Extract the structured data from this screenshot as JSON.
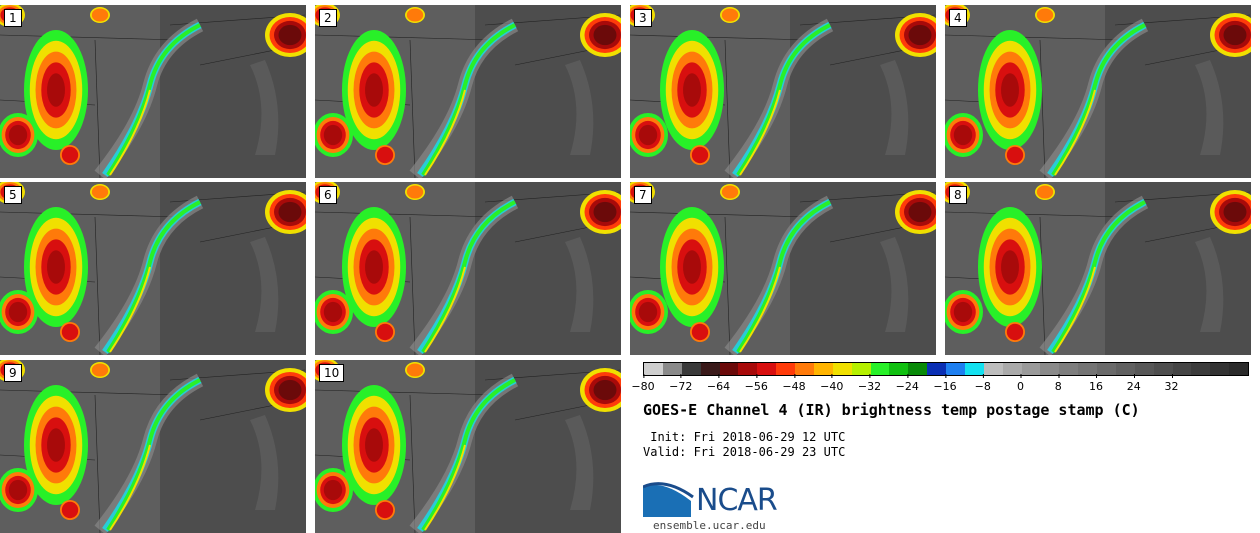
{
  "panels": [
    {
      "label": "1"
    },
    {
      "label": "2"
    },
    {
      "label": "3"
    },
    {
      "label": "4"
    },
    {
      "label": "5"
    },
    {
      "label": "6"
    },
    {
      "label": "7"
    },
    {
      "label": "8"
    },
    {
      "label": "9"
    },
    {
      "label": "10"
    }
  ],
  "colorbar": {
    "colors": [
      "#cfcfcf",
      "#8a8a8a",
      "#3a3a3a",
      "#3a1a1a",
      "#6b0a0a",
      "#a80a0a",
      "#d80f0f",
      "#ff3b0a",
      "#ff7a0a",
      "#ffb400",
      "#f0e000",
      "#b5f000",
      "#28f028",
      "#10c010",
      "#088a08",
      "#0a2fb4",
      "#1e7ff0",
      "#14e1f0",
      "#bdbdbd",
      "#aaaaaa",
      "#9a9a9a",
      "#8a8a8a",
      "#7e7e7e",
      "#747474",
      "#6a6a6a",
      "#606060",
      "#575757",
      "#4e4e4e",
      "#454545",
      "#3c3c3c",
      "#333333",
      "#2b2b2b"
    ],
    "ticks": [
      "−80",
      "−72",
      "−64",
      "−56",
      "−48",
      "−40",
      "−32",
      "−24",
      "−16",
      "−8",
      "0",
      "8",
      "16",
      "24",
      "32"
    ]
  },
  "title": "GOES-E Channel 4 (IR) brightness temp postage stamp (C)",
  "init": " Init: Fri 2018-06-29 12 UTC",
  "valid": "Valid: Fri 2018-06-29 23 UTC",
  "logo": {
    "text": "NCAR",
    "url": "ensemble.ucar.edu"
  }
}
